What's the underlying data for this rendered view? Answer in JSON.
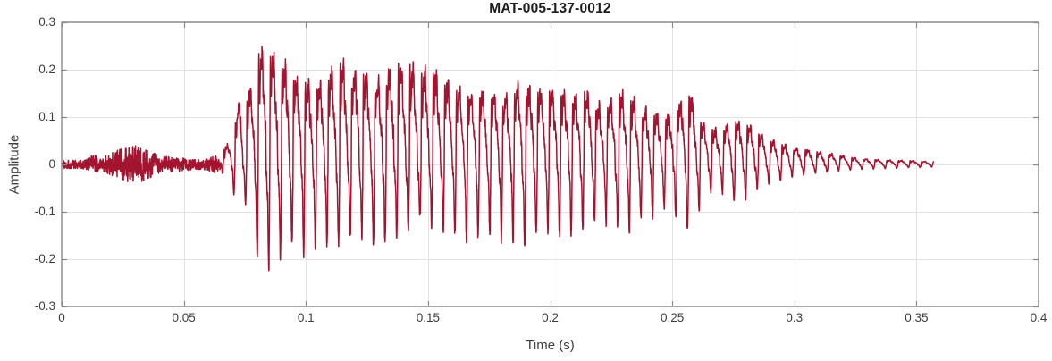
{
  "chart_data": {
    "type": "line",
    "title": "MAT-005-137-0012",
    "xlabel": "Time (s)",
    "ylabel": "Amplitude",
    "xlim": [
      0,
      0.4
    ],
    "ylim": [
      -0.3,
      0.3
    ],
    "grid": true,
    "legend": "none",
    "xticks": {
      "values": [
        0,
        0.05,
        0.1,
        0.15,
        0.2,
        0.25,
        0.3,
        0.35,
        0.4
      ],
      "labels": [
        "0",
        "0.05",
        "0.1",
        "0.15",
        "0.2",
        "0.25",
        "0.3",
        "0.35",
        "0.4"
      ]
    },
    "yticks": {
      "values": [
        0.3,
        0.2,
        0.1,
        0,
        -0.1,
        -0.2,
        -0.3
      ],
      "labels": [
        "0.3",
        "0.2",
        "0.1",
        "0",
        "-0.1",
        "-0.2",
        "-0.3"
      ]
    },
    "line_color": "#A2142F",
    "axis_color": "#8a8a8a",
    "grid_color": "#e2e2e2",
    "waveform": {
      "t_end": 0.357,
      "pitch_hz": 210,
      "voiced_onset_s": 0.064,
      "envelope": [
        [
          0.0,
          0.008,
          -0.008
        ],
        [
          0.006,
          0.009,
          -0.009
        ],
        [
          0.01,
          0.012,
          -0.01
        ],
        [
          0.013,
          0.022,
          -0.018
        ],
        [
          0.016,
          0.012,
          -0.012
        ],
        [
          0.02,
          0.025,
          -0.022
        ],
        [
          0.024,
          0.032,
          -0.03
        ],
        [
          0.028,
          0.035,
          -0.038
        ],
        [
          0.03,
          0.04,
          -0.045
        ],
        [
          0.033,
          0.032,
          -0.035
        ],
        [
          0.036,
          0.028,
          -0.028
        ],
        [
          0.04,
          0.018,
          -0.018
        ],
        [
          0.045,
          0.015,
          -0.015
        ],
        [
          0.05,
          0.014,
          -0.014
        ],
        [
          0.055,
          0.01,
          -0.01
        ],
        [
          0.06,
          0.012,
          -0.012
        ],
        [
          0.064,
          0.022,
          -0.025
        ],
        [
          0.067,
          0.038,
          -0.045
        ],
        [
          0.07,
          0.055,
          -0.06
        ],
        [
          0.073,
          0.15,
          -0.065
        ],
        [
          0.0765,
          0.152,
          -0.095
        ],
        [
          0.08,
          0.22,
          -0.185
        ],
        [
          0.0835,
          0.272,
          -0.225
        ],
        [
          0.087,
          0.235,
          -0.195
        ],
        [
          0.091,
          0.22,
          -0.19
        ],
        [
          0.095,
          0.185,
          -0.17
        ],
        [
          0.099,
          0.18,
          -0.188
        ],
        [
          0.104,
          0.17,
          -0.17
        ],
        [
          0.109,
          0.182,
          -0.165
        ],
        [
          0.114,
          0.232,
          -0.17
        ],
        [
          0.118,
          0.18,
          -0.16
        ],
        [
          0.122,
          0.212,
          -0.15
        ],
        [
          0.127,
          0.165,
          -0.162
        ],
        [
          0.132,
          0.192,
          -0.172
        ],
        [
          0.137,
          0.212,
          -0.148
        ],
        [
          0.143,
          0.215,
          -0.14
        ],
        [
          0.147,
          0.198,
          -0.112
        ],
        [
          0.151,
          0.202,
          -0.128
        ],
        [
          0.156,
          0.178,
          -0.136
        ],
        [
          0.161,
          0.162,
          -0.148
        ],
        [
          0.166,
          0.152,
          -0.158
        ],
        [
          0.171,
          0.156,
          -0.15
        ],
        [
          0.176,
          0.148,
          -0.146
        ],
        [
          0.181,
          0.142,
          -0.162
        ],
        [
          0.186,
          0.168,
          -0.156
        ],
        [
          0.191,
          0.166,
          -0.172
        ],
        [
          0.196,
          0.158,
          -0.128
        ],
        [
          0.201,
          0.156,
          -0.15
        ],
        [
          0.206,
          0.15,
          -0.142
        ],
        [
          0.211,
          0.146,
          -0.146
        ],
        [
          0.216,
          0.158,
          -0.132
        ],
        [
          0.221,
          0.122,
          -0.122
        ],
        [
          0.227,
          0.148,
          -0.135
        ],
        [
          0.232,
          0.152,
          -0.14
        ],
        [
          0.237,
          0.122,
          -0.118
        ],
        [
          0.242,
          0.112,
          -0.11
        ],
        [
          0.247,
          0.1,
          -0.092
        ],
        [
          0.252,
          0.12,
          -0.118
        ],
        [
          0.2555,
          0.162,
          -0.14
        ],
        [
          0.259,
          0.13,
          -0.12
        ],
        [
          0.264,
          0.072,
          -0.062
        ],
        [
          0.269,
          0.076,
          -0.056
        ],
        [
          0.275,
          0.092,
          -0.08
        ],
        [
          0.28,
          0.086,
          -0.072
        ],
        [
          0.286,
          0.066,
          -0.045
        ],
        [
          0.292,
          0.048,
          -0.036
        ],
        [
          0.298,
          0.038,
          -0.028
        ],
        [
          0.304,
          0.032,
          -0.022
        ],
        [
          0.31,
          0.026,
          -0.017
        ],
        [
          0.316,
          0.022,
          -0.014
        ],
        [
          0.322,
          0.016,
          -0.012
        ],
        [
          0.328,
          0.012,
          -0.01
        ],
        [
          0.334,
          0.01,
          -0.009
        ],
        [
          0.34,
          0.009,
          -0.008
        ],
        [
          0.348,
          0.008,
          -0.007
        ],
        [
          0.357,
          0.006,
          -0.005
        ]
      ]
    }
  }
}
